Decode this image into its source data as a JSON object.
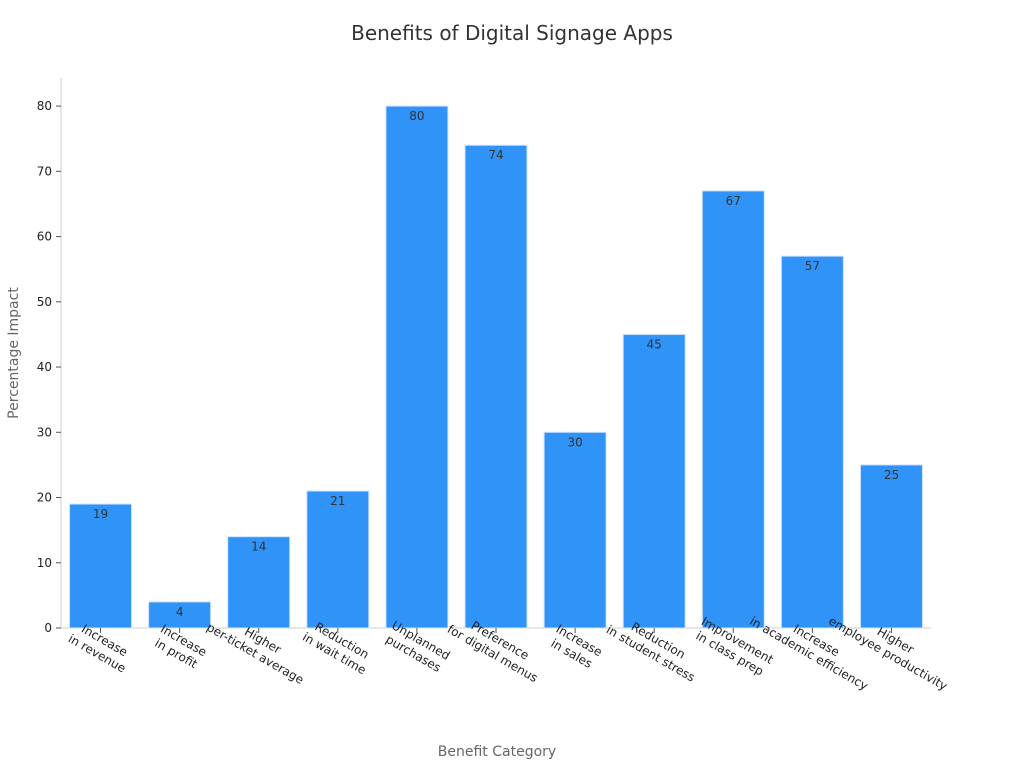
{
  "chart_data": {
    "type": "bar",
    "title": "Benefits of Digital Signage Apps",
    "xlabel": "Benefit Category",
    "ylabel": "Percentage Impact",
    "categories": [
      [
        "Increase",
        "in revenue"
      ],
      [
        "Increase",
        "in profit"
      ],
      [
        "Higher",
        "per-ticket average"
      ],
      [
        "Reduction",
        "in wait time"
      ],
      [
        "Unplanned",
        "purchases"
      ],
      [
        "Preference",
        "for digital menus"
      ],
      [
        "Increase",
        "in sales"
      ],
      [
        "Reduction",
        "in student stress"
      ],
      [
        "Improvement",
        "in class prep"
      ],
      [
        "Increase",
        "in academic efficiency"
      ],
      [
        "Higher",
        "employee productivity"
      ]
    ],
    "values": [
      19,
      4,
      14,
      21,
      80,
      74,
      30,
      45,
      67,
      57,
      25
    ],
    "ylim": [
      0,
      84
    ],
    "yticks": [
      0,
      10,
      20,
      30,
      40,
      50,
      60,
      70,
      80
    ],
    "grid": false,
    "bar_color": "#2f93f7"
  }
}
